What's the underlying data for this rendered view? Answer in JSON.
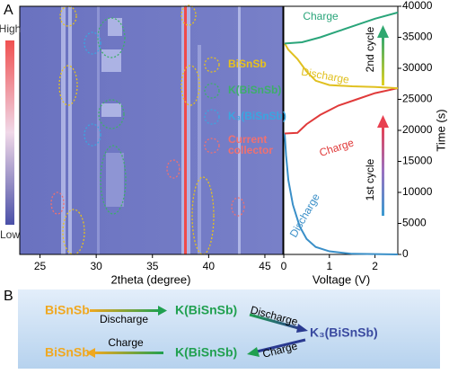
{
  "panel_labels": [
    "A",
    "B"
  ],
  "chart_data": [
    {
      "type": "heatmap",
      "x_label": "2theta (degree)",
      "xlim": [
        23.2,
        46.6
      ],
      "xticks": [
        25,
        30,
        35,
        40,
        45
      ],
      "colorbar": {
        "high": "High",
        "low": "Low"
      },
      "legend": [
        {
          "name": "BiSnSb",
          "color": "#e8c21a"
        },
        {
          "name": "K(BiSnSb)",
          "color": "#3dae6a"
        },
        {
          "name": "K₃(BiSnSb)",
          "color": "#3aa6e0"
        },
        {
          "name": "Current collector",
          "color": "#f07070"
        }
      ]
    },
    {
      "type": "line",
      "x_label": "Voltage (V)",
      "y_label": "Time (s)",
      "xlim": [
        0,
        2.5
      ],
      "xticks": [
        0,
        1,
        2
      ],
      "ylim": [
        0,
        40000
      ],
      "yticks": [
        0,
        5000,
        10000,
        15000,
        20000,
        25000,
        30000,
        35000,
        40000
      ],
      "cycle_labels": [
        "1st cycle",
        "2nd cycle"
      ],
      "series": [
        {
          "name": "Discharge",
          "color": "#3a8fc8",
          "x": [
            2.5,
            1.5,
            1.0,
            0.7,
            0.5,
            0.35,
            0.2,
            0.1,
            0.05,
            0.02
          ],
          "values": [
            0,
            100,
            500,
            1200,
            2500,
            4500,
            8000,
            12000,
            16000,
            19500
          ]
        },
        {
          "name": "Charge",
          "color": "#e03a3a",
          "x": [
            0.02,
            0.3,
            0.5,
            0.8,
            1.2,
            1.6,
            2.0,
            2.5
          ],
          "values": [
            19500,
            19600,
            21000,
            22500,
            24000,
            25000,
            26000,
            26800
          ]
        },
        {
          "name": "Discharge",
          "color": "#e0c020",
          "x": [
            2.5,
            2.0,
            1.5,
            1.0,
            0.7,
            0.5,
            0.3,
            0.1,
            0.02
          ],
          "values": [
            26800,
            27000,
            27100,
            27300,
            28000,
            29500,
            31500,
            33000,
            34000
          ]
        },
        {
          "name": "Charge",
          "color": "#2aa57a",
          "x": [
            0.02,
            0.4,
            0.8,
            1.2,
            1.6,
            2.0,
            2.5
          ],
          "values": [
            34000,
            34200,
            35000,
            36000,
            37000,
            38000,
            39000
          ]
        }
      ]
    }
  ],
  "diagram": {
    "row1": [
      "BiSnSb",
      "Discharge",
      "K(BiSnSb)",
      "Discharge"
    ],
    "center": "K₃(BiSnSb)",
    "row2": [
      "BiSnSb",
      "Charge",
      "K(BiSnSb)",
      "Charge"
    ]
  }
}
